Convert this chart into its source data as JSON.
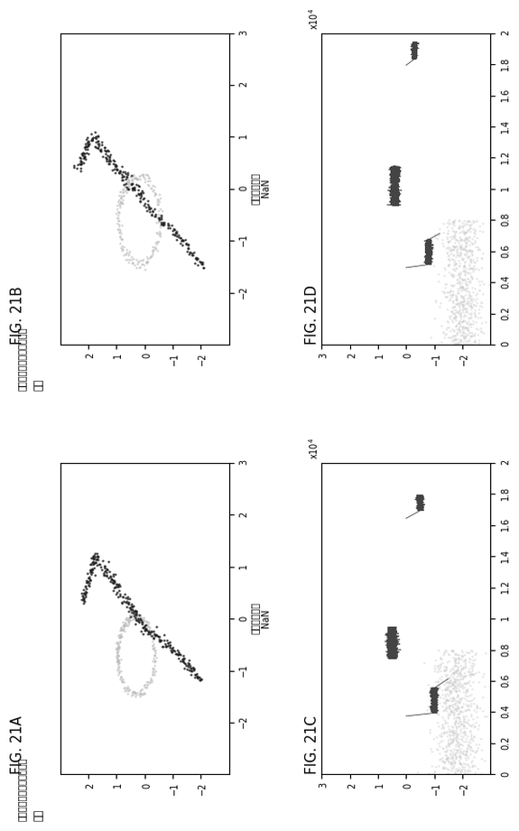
{
  "fig21A_title": "FIG. 21A",
  "fig21B_title": "FIG. 21B",
  "fig21C_title": "FIG. 21C",
  "fig21D_title": "FIG. 21D",
  "subtitle": "脳振盪の対象の眼球追跡：",
  "eye_label_A": "左眼",
  "eye_label_B": "右眼",
  "xlabel_AB": "アスペクト比\nNaN",
  "xlim_AB": [
    -3,
    3
  ],
  "ylim_AB": [
    -3,
    3
  ],
  "xlim_CD": [
    0,
    20000
  ],
  "ylim_CD": [
    -3,
    3
  ],
  "background_color": "#ffffff"
}
